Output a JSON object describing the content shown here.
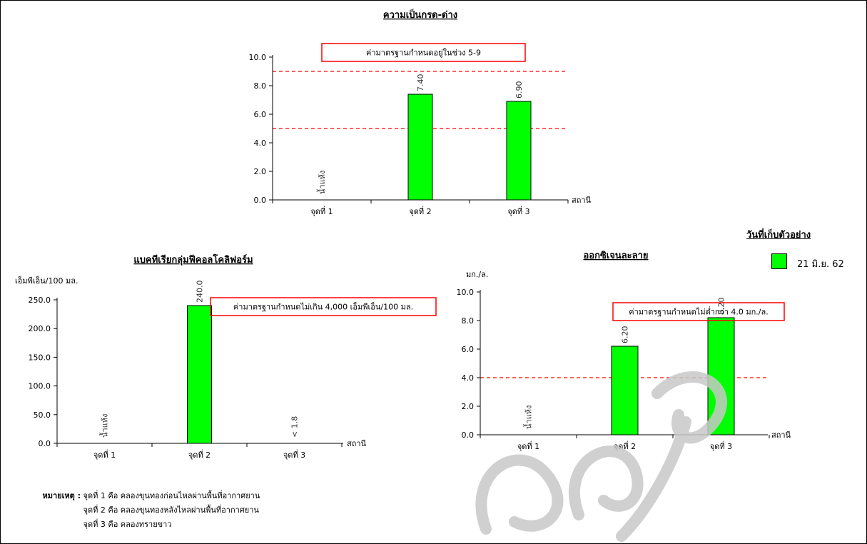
{
  "chart_data": [
    {
      "type": "bar",
      "title": "ความเป็นกรด-ด่าง",
      "ylabel": "",
      "xlabel": "สถานี",
      "categories": [
        "จุดที่ 1",
        "จุดที่ 2",
        "จุดที่ 3"
      ],
      "values": [
        null,
        7.4,
        6.9
      ],
      "value_labels": [
        "",
        "7.40",
        "6.90"
      ],
      "missing_labels": [
        "น้ำแห้ง",
        "",
        ""
      ],
      "ylim": [
        0,
        10
      ],
      "yticks": [
        "0.0",
        "2.0",
        "4.0",
        "6.0",
        "8.0",
        "10.0"
      ],
      "reference_lines": [
        9,
        5
      ],
      "standard_note": "ค่ามาตรฐานกำหนดอยู่ในช่วง 5-9",
      "bar_color": "#00ff00",
      "ref_color": "#ff0000"
    },
    {
      "type": "bar",
      "title": "แบคทีเรียกลุ่มฟีคอลโคลิฟอร์ม",
      "ylabel": "เอ็มพีเอ็น/100 มล.",
      "xlabel": "สถานี",
      "categories": [
        "จุดที่ 1",
        "จุดที่ 2",
        "จุดที่ 3"
      ],
      "values": [
        null,
        240.0,
        null
      ],
      "value_labels": [
        "",
        "240.0",
        ""
      ],
      "missing_labels": [
        "น้ำแห้ง",
        "",
        "< 1.8"
      ],
      "ylim": [
        0,
        250
      ],
      "yticks": [
        "0.0",
        "50.0",
        "100.0",
        "150.0",
        "200.0",
        "250.0"
      ],
      "reference_lines": [],
      "standard_note": "ค่ามาตรฐานกำหนดไม่เกิน 4,000  เอ็มพีเอ็น/100 มล.",
      "bar_color": "#00ff00",
      "ref_color": "#ff0000"
    },
    {
      "type": "bar",
      "title": "ออกซิเจนละลาย",
      "ylabel": "มก./ล.",
      "xlabel": "สถานี",
      "categories": [
        "จุดที่ 1",
        "จุดที่ 2",
        "จุดที่ 3"
      ],
      "values": [
        null,
        6.2,
        8.2
      ],
      "value_labels": [
        "",
        "6.20",
        "8.20"
      ],
      "missing_labels": [
        "น้ำแห้ง",
        "",
        ""
      ],
      "ylim": [
        0,
        10
      ],
      "yticks": [
        "0.0",
        "2.0",
        "4.0",
        "6.0",
        "8.0",
        "10.0"
      ],
      "reference_lines": [
        4
      ],
      "standard_note": "ค่ามาตรฐานกำหนดไม่ต่ำกว่า 4.0 มก./ล.",
      "bar_color": "#00ff00",
      "ref_color": "#ff0000"
    }
  ],
  "legend": {
    "title": "วันที่เก็บตัวอย่าง",
    "series_label": "21 มิ.ย. 62",
    "color": "#00ff00"
  },
  "notes": {
    "heading": "หมายเหตุ :",
    "lines": [
      "จุดที่ 1 คือ  คลองขุนทองก่อนไหลผ่านพื้นที่อากาศยาน",
      "จุดที่ 2 คือ  คลองขุนทองหลังไหลผ่านพื้นที่อากาศยาน",
      "จุดที่ 3 คือ  คลองทรายขาว"
    ]
  }
}
